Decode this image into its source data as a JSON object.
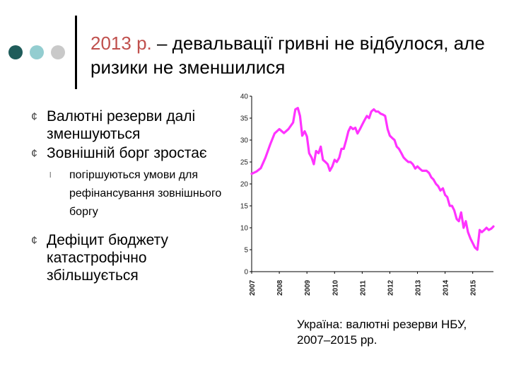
{
  "slide": {
    "title_accent": "2013 р.",
    "title_rest": " – девальвації гривні не відбулося, але ризики не зменшилися",
    "bullets": [
      "Валютні резерви далі зменшуються",
      "Зовнішній борг зростає",
      "погіршуються умови для рефінансування зовнішнього боргу",
      "Дефіцит бюджету катастрофічно збільшується"
    ],
    "bullet_marker": "¢",
    "sub_bullet_marker": "l",
    "caption": "Україна: валютні резерви НБУ, 2007–2015 рр."
  },
  "colors": {
    "accent": "#c0504d",
    "line": "#ff33ff",
    "dot1": "#1f5c5a",
    "dot2": "#93cdd0",
    "dot3": "#c9c9c9"
  },
  "chart_data": {
    "type": "line",
    "title": "",
    "xlabel": "",
    "ylabel": "",
    "ylim": [
      0,
      40
    ],
    "xlim": [
      2007,
      2015.75
    ],
    "y_ticks": [
      "0",
      "5",
      "10",
      "15",
      "20",
      "25",
      "30",
      "35",
      "40"
    ],
    "x_ticks": [
      "2007",
      "2008",
      "2009",
      "2010",
      "2011",
      "2012",
      "2013",
      "2014",
      "2015"
    ],
    "grid": false,
    "legend": "none",
    "series": [
      {
        "x": [
          2007.0,
          2007.17,
          2007.33,
          2007.5,
          2007.67,
          2007.83,
          2008.0,
          2008.17,
          2008.33,
          2008.5,
          2008.58,
          2008.67,
          2008.75,
          2008.83,
          2008.92,
          2009.0,
          2009.08,
          2009.17,
          2009.25,
          2009.33,
          2009.42,
          2009.5,
          2009.58,
          2009.67,
          2009.75,
          2009.83,
          2009.92,
          2010.0,
          2010.08,
          2010.17,
          2010.25,
          2010.33,
          2010.42,
          2010.5,
          2010.58,
          2010.67,
          2010.75,
          2010.83,
          2010.92,
          2011.0,
          2011.08,
          2011.17,
          2011.25,
          2011.33,
          2011.42,
          2011.5,
          2011.58,
          2011.67,
          2011.75,
          2011.83,
          2011.92,
          2012.0,
          2012.08,
          2012.17,
          2012.25,
          2012.33,
          2012.42,
          2012.5,
          2012.58,
          2012.67,
          2012.75,
          2012.83,
          2012.92,
          2013.0,
          2013.08,
          2013.17,
          2013.25,
          2013.33,
          2013.42,
          2013.5,
          2013.58,
          2013.67,
          2013.75,
          2013.83,
          2013.92,
          2014.0,
          2014.08,
          2014.17,
          2014.25,
          2014.33,
          2014.42,
          2014.5,
          2014.58,
          2014.67,
          2014.75,
          2014.83,
          2014.92,
          2015.0,
          2015.08,
          2015.17,
          2015.25,
          2015.33,
          2015.42,
          2015.5,
          2015.58,
          2015.67,
          2015.75
        ],
        "values": [
          22.3,
          22.8,
          23.6,
          26.0,
          29.0,
          31.5,
          32.5,
          31.6,
          32.5,
          34.0,
          37.0,
          37.3,
          35.5,
          31.0,
          32.0,
          30.8,
          27.0,
          26.0,
          24.5,
          27.5,
          27.0,
          28.5,
          25.5,
          25.0,
          24.5,
          23.0,
          24.0,
          25.5,
          25.0,
          26.0,
          28.0,
          28.0,
          30.0,
          32.0,
          33.0,
          32.5,
          32.8,
          31.5,
          32.5,
          33.5,
          34.5,
          35.5,
          35.0,
          36.5,
          37.0,
          36.5,
          36.5,
          36.0,
          35.8,
          35.5,
          32.5,
          31.0,
          30.5,
          30.0,
          28.5,
          28.0,
          27.0,
          26.0,
          25.5,
          25.0,
          25.0,
          24.5,
          23.5,
          24.0,
          23.5,
          23.0,
          23.0,
          23.0,
          22.5,
          21.5,
          21.0,
          20.0,
          19.5,
          18.5,
          19.0,
          17.5,
          17.0,
          15.0,
          15.0,
          14.0,
          12.0,
          11.5,
          13.5,
          10.0,
          11.5,
          9.0,
          7.5,
          6.5,
          5.5,
          5.0,
          9.5,
          9.0,
          9.5,
          10.0,
          9.5,
          9.8,
          10.3
        ]
      }
    ]
  }
}
